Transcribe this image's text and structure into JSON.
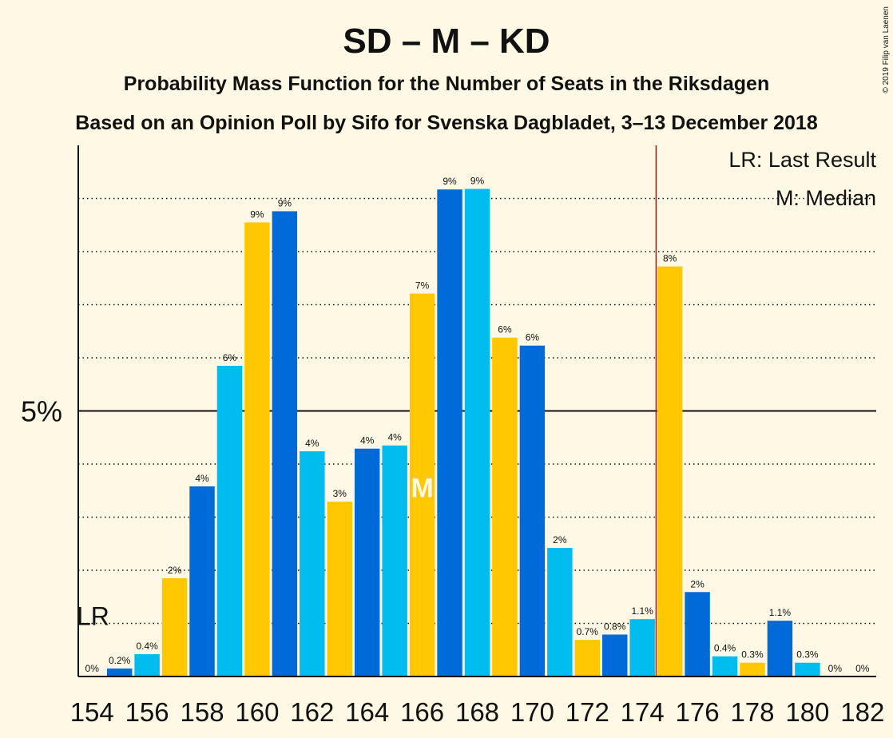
{
  "title": "SD – M – KD",
  "subtitle1": "Probability Mass Function for the Number of Seats in the Riksdagen",
  "subtitle2": "Based on an Opinion Poll by Sifo for Svenska Dagbladet, 3–13 December 2018",
  "copyright": "© 2019 Filip van Laenen",
  "legend": {
    "lr": "LR: Last Result",
    "median": "M: Median"
  },
  "colors": {
    "background": "#fff8e5",
    "blue_dark": "#006ad9",
    "blue_light": "#00bcef",
    "yellow": "#ffc800",
    "majority_line": "#cc0000"
  },
  "chart_data": {
    "type": "bar",
    "x": [
      154,
      155,
      156,
      157,
      158,
      159,
      160,
      161,
      162,
      163,
      164,
      165,
      166,
      167,
      168,
      169,
      170,
      171,
      172,
      173,
      174,
      175,
      176,
      177,
      178,
      179,
      180,
      181,
      182
    ],
    "values": [
      0,
      0.15,
      0.42,
      1.85,
      3.58,
      5.85,
      8.55,
      8.76,
      4.24,
      3.29,
      4.29,
      4.35,
      7.21,
      9.17,
      9.18,
      6.38,
      6.23,
      2.42,
      0.69,
      0.79,
      1.08,
      7.72,
      1.59,
      0.38,
      0.26,
      1.05,
      0.26,
      0,
      0
    ],
    "labels": [
      "0%",
      "0.2%",
      "0.4%",
      "2%",
      "4%",
      "6%",
      "9%",
      "9%",
      "4%",
      "3%",
      "4%",
      "4%",
      "7%",
      "9%",
      "9%",
      "6%",
      "6%",
      "2%",
      "0.7%",
      "0.8%",
      "1.1%",
      "8%",
      "2%",
      "0.4%",
      "0.3%",
      "1.1%",
      "0.3%",
      "0%",
      "0%"
    ],
    "colors": [
      "blue_light",
      "blue_dark",
      "blue_light",
      "yellow",
      "blue_dark",
      "blue_light",
      "yellow",
      "blue_dark",
      "blue_light",
      "yellow",
      "blue_dark",
      "blue_light",
      "yellow",
      "blue_dark",
      "blue_light",
      "yellow",
      "blue_dark",
      "blue_light",
      "yellow",
      "blue_dark",
      "blue_light",
      "yellow",
      "blue_dark",
      "blue_light",
      "yellow",
      "blue_dark",
      "blue_light",
      "yellow",
      "blue_dark"
    ],
    "xticks": [
      154,
      156,
      158,
      160,
      162,
      164,
      166,
      168,
      170,
      172,
      174,
      176,
      178,
      180,
      182
    ],
    "ylim": [
      0,
      10
    ],
    "ytick_label": "5%",
    "ytick_value": 5,
    "grid_step": 1,
    "last_result": 154,
    "last_result_label": "LR",
    "median": 166,
    "median_label": "M",
    "majority_line": 175
  }
}
